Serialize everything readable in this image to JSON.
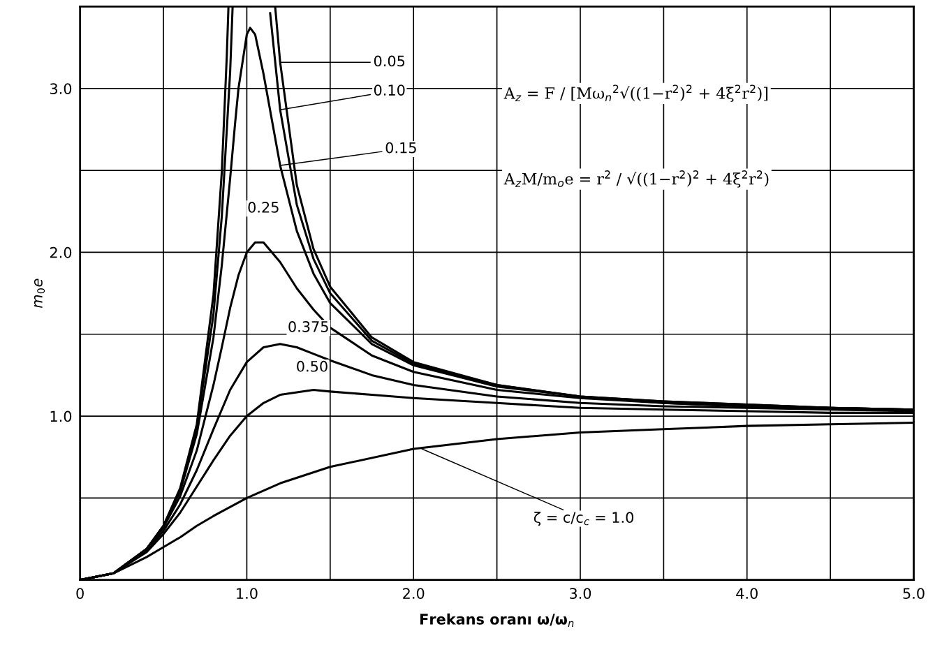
{
  "chart_data": {
    "type": "line",
    "xlabel": "Frekans oranı ω/ω$_{n}$",
    "ylabel": "m$_{0}$e",
    "xlim": [
      0,
      5.0
    ],
    "ylim": [
      0,
      3.5
    ],
    "xticks": [
      0,
      {
        "value": 0.5,
        "label": null
      },
      {
        "value": 1.0,
        "label": "1.0"
      },
      {
        "value": 1.5,
        "label": null
      },
      {
        "value": 2.0,
        "label": "2.0"
      },
      {
        "value": 2.5,
        "label": null
      },
      {
        "value": 3.0,
        "label": "3.0"
      },
      {
        "value": 3.5,
        "label": null
      },
      {
        "value": 4.0,
        "label": "4.0"
      },
      {
        "value": 4.5,
        "label": null
      },
      {
        "value": 5.0,
        "label": "5.0"
      }
    ],
    "yticks": [
      {
        "value": 0,
        "label": null
      },
      {
        "value": 0.5,
        "label": null
      },
      {
        "value": 1.0,
        "label": "1.0"
      },
      {
        "value": 1.5,
        "label": null
      },
      {
        "value": 2.0,
        "label": "2.0"
      },
      {
        "value": 2.5,
        "label": null
      },
      {
        "value": 3.0,
        "label": "3.0"
      }
    ],
    "grid": true,
    "legend": false,
    "marker": "none",
    "line_style": "solid",
    "series": [
      {
        "color": "#000000",
        "x": [
          0,
          0.2,
          0.4,
          0.5,
          0.6,
          0.7,
          0.8,
          0.85,
          0.88,
          0.89
        ],
        "values": [
          0,
          0.04,
          0.19,
          0.33,
          0.56,
          0.95,
          1.74,
          2.49,
          3.2,
          3.5
        ]
      },
      {
        "color": "#000000",
        "x": [
          1.17,
          1.2,
          1.3,
          1.4,
          1.5,
          1.75,
          2.0,
          2.5,
          3.0,
          3.5,
          4.0,
          4.5,
          5.0
        ],
        "values": [
          3.5,
          3.16,
          2.41,
          2.02,
          1.79,
          1.48,
          1.33,
          1.19,
          1.12,
          1.09,
          1.07,
          1.05,
          1.04
        ]
      },
      {
        "color": "#000000",
        "x": [
          0,
          0.2,
          0.4,
          0.5,
          0.6,
          0.7,
          0.8,
          0.85,
          0.9,
          0.915
        ],
        "values": [
          0,
          0.04,
          0.19,
          0.33,
          0.55,
          0.93,
          1.62,
          2.22,
          3.1,
          3.5
        ]
      },
      {
        "color": "#000000",
        "x": [
          1.14,
          1.2,
          1.3,
          1.4,
          1.5,
          1.75,
          2.0,
          2.5,
          3.0,
          3.5,
          4.0,
          4.5,
          5.0
        ],
        "values": [
          3.46,
          2.87,
          2.29,
          1.96,
          1.75,
          1.46,
          1.32,
          1.19,
          1.12,
          1.09,
          1.07,
          1.05,
          1.04
        ]
      },
      {
        "color": "#000000",
        "x": [
          0,
          0.2,
          0.4,
          0.5,
          0.6,
          0.7,
          0.8,
          0.85,
          0.9,
          0.93,
          0.95,
          1.0,
          1.02,
          1.05,
          1.1,
          1.2,
          1.3,
          1.4,
          1.5,
          1.75,
          2.0,
          2.5,
          3.0,
          3.5,
          4.0,
          4.5,
          5.0
        ],
        "values": [
          0,
          0.04,
          0.19,
          0.33,
          0.54,
          0.89,
          1.48,
          1.92,
          2.45,
          2.79,
          3.0,
          3.33,
          3.37,
          3.33,
          3.09,
          2.53,
          2.13,
          1.87,
          1.69,
          1.44,
          1.31,
          1.18,
          1.12,
          1.08,
          1.06,
          1.05,
          1.04
        ]
      },
      {
        "color": "#000000",
        "x": [
          0,
          0.2,
          0.4,
          0.5,
          0.6,
          0.7,
          0.8,
          0.85,
          0.9,
          0.95,
          1.0,
          1.05,
          1.1,
          1.2,
          1.3,
          1.4,
          1.5,
          1.75,
          2.0,
          2.5,
          3.0,
          3.5,
          4.0,
          4.5,
          5.0
        ],
        "values": [
          0,
          0.04,
          0.19,
          0.32,
          0.51,
          0.79,
          1.19,
          1.42,
          1.66,
          1.86,
          2.0,
          2.06,
          2.06,
          1.94,
          1.78,
          1.65,
          1.54,
          1.37,
          1.27,
          1.16,
          1.11,
          1.08,
          1.06,
          1.05,
          1.04
        ]
      },
      {
        "color": "#000000",
        "x": [
          0,
          0.2,
          0.4,
          0.5,
          0.6,
          0.7,
          0.8,
          0.9,
          1.0,
          1.1,
          1.2,
          1.3,
          1.4,
          1.5,
          1.75,
          2.0,
          2.5,
          3.0,
          3.5,
          4.0,
          4.5,
          5.0
        ],
        "values": [
          0,
          0.04,
          0.18,
          0.3,
          0.46,
          0.67,
          0.92,
          1.16,
          1.33,
          1.42,
          1.44,
          1.42,
          1.38,
          1.34,
          1.25,
          1.19,
          1.12,
          1.08,
          1.06,
          1.05,
          1.04,
          1.03
        ]
      },
      {
        "color": "#000000",
        "x": [
          0,
          0.2,
          0.4,
          0.5,
          0.6,
          0.7,
          0.8,
          0.9,
          1.0,
          1.1,
          1.2,
          1.4,
          1.5,
          1.75,
          2.0,
          2.5,
          3.0,
          3.5,
          4.0,
          4.5,
          5.0
        ],
        "values": [
          0,
          0.04,
          0.17,
          0.28,
          0.41,
          0.57,
          0.73,
          0.88,
          1.0,
          1.08,
          1.13,
          1.16,
          1.15,
          1.13,
          1.11,
          1.08,
          1.05,
          1.04,
          1.03,
          1.02,
          1.02
        ]
      },
      {
        "color": "#000000",
        "x": [
          0,
          0.2,
          0.4,
          0.5,
          0.6,
          0.7,
          0.8,
          1.0,
          1.2,
          1.5,
          2.0,
          2.5,
          3.0,
          3.5,
          4.0,
          4.5,
          5.0
        ],
        "values": [
          0,
          0.04,
          0.14,
          0.2,
          0.26,
          0.33,
          0.39,
          0.5,
          0.59,
          0.69,
          0.8,
          0.86,
          0.9,
          0.92,
          0.94,
          0.95,
          0.96
        ]
      }
    ],
    "annotations": [
      {
        "text": "0.05",
        "x": 1.2,
        "y": 3.16
      },
      {
        "text": "0.10",
        "x": 1.2,
        "y": 2.87
      },
      {
        "text": "0.15",
        "x": 1.2,
        "y": 2.53
      },
      {
        "text": "0.25",
        "x": 1.1,
        "y": 2.06
      },
      {
        "text": "0.375",
        "x": 1.3,
        "y": 1.42
      },
      {
        "text": "0.50",
        "x": 1.45,
        "y": 1.16
      },
      {
        "text": "ζ = c/c$_{c}$ = 1.0",
        "x": 2.05,
        "y": 0.8
      },
      "A$_{z}$ = F / [Mω$_{n}$$^{2}$√((1−r$^{2}$)$^{2}$ + 4ξ$^{2}$r$^{2}$)]",
      "A$_{z}$M/m$_{o}$e = r$^{2}$ / √((1−r$^{2}$)$^{2}$ + 4ξ$^{2}$r$^{2}$)"
    ]
  }
}
